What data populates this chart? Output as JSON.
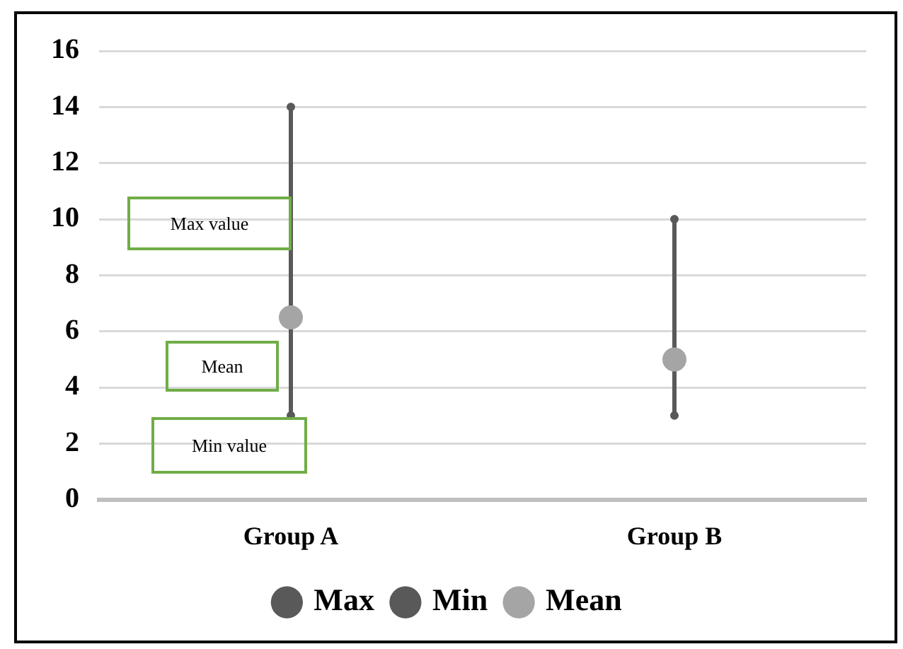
{
  "chart_data": {
    "type": "scatter",
    "marker": "circle",
    "categories": [
      "Group A",
      "Group B"
    ],
    "series": [
      {
        "name": "Max",
        "color": "#595959",
        "values": [
          14,
          10
        ]
      },
      {
        "name": "Min",
        "color": "#595959",
        "values": [
          3,
          3
        ]
      },
      {
        "name": "Mean",
        "color": "#a5a5a5",
        "values": [
          6.5,
          5
        ]
      }
    ],
    "ylim": [
      0,
      16
    ],
    "yticks": [
      0,
      2,
      4,
      6,
      8,
      10,
      12,
      14,
      16
    ],
    "grid": "y",
    "legend": "bottom",
    "annotations": [
      "Max value",
      "Mean",
      "Min value"
    ]
  }
}
